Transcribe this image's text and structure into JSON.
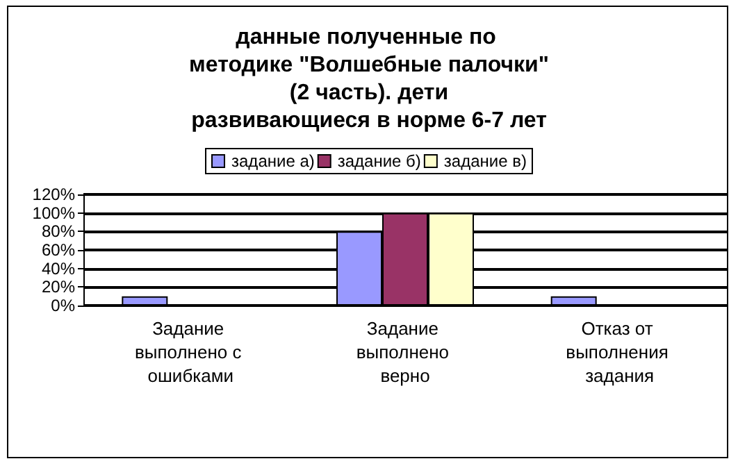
{
  "chart_data": {
    "type": "bar",
    "title": "данные полученные по методике \"Волшебные палочки\" (2 часть). дети развивающиеся в норме 6-7 лет",
    "categories": [
      "Задание выполнено с ошибками",
      "Задание выполнено верно",
      "Отказ от выполнения задания"
    ],
    "series": [
      {
        "name": "задание а)",
        "color": "#9999ff",
        "values": [
          10,
          80,
          10
        ]
      },
      {
        "name": "задание б)",
        "color": "#993366",
        "values": [
          0,
          100,
          0
        ]
      },
      {
        "name": "задание в)",
        "color": "#ffffcc",
        "values": [
          0,
          100,
          0
        ]
      }
    ],
    "ylim": [
      0,
      120
    ],
    "yticks": [
      {
        "value": 0,
        "label": "0%"
      },
      {
        "value": 20,
        "label": "20%"
      },
      {
        "value": 40,
        "label": "40%"
      },
      {
        "value": 60,
        "label": "60%"
      },
      {
        "value": 80,
        "label": "80%"
      },
      {
        "value": 100,
        "label": "100%"
      },
      {
        "value": 120,
        "label": "120%"
      }
    ],
    "grid": "y",
    "legend": "top"
  }
}
